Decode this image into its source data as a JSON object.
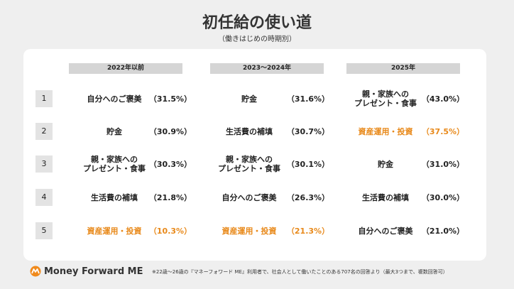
{
  "title": "初任給の使い道",
  "subtitle": "（働きはじめの時期別）",
  "chart_data": {
    "type": "table",
    "columns": [
      "2022年以前",
      "2023〜2024年",
      "2025年"
    ],
    "ranks": [
      "1",
      "2",
      "3",
      "4",
      "5"
    ],
    "rows": [
      [
        {
          "item": "自分へのご褒美",
          "pct": "（31.5%）",
          "highlight": false
        },
        {
          "item": "貯金",
          "pct": "（31.6%）",
          "highlight": false
        },
        {
          "item": "親・家族への\nプレゼント・食事",
          "pct": "（43.0%）",
          "highlight": false
        }
      ],
      [
        {
          "item": "貯金",
          "pct": "（30.9%）",
          "highlight": false
        },
        {
          "item": "生活費の補填",
          "pct": "（30.7%）",
          "highlight": false
        },
        {
          "item": "資産運用・投資",
          "pct": "（37.5%）",
          "highlight": true
        }
      ],
      [
        {
          "item": "親・家族への\nプレゼント・食事",
          "pct": "（30.3%）",
          "highlight": false
        },
        {
          "item": "親・家族への\nプレゼント・食事",
          "pct": "（30.1%）",
          "highlight": false
        },
        {
          "item": "貯金",
          "pct": "（31.0%）",
          "highlight": false
        }
      ],
      [
        {
          "item": "生活費の補填",
          "pct": "（21.8%）",
          "highlight": false
        },
        {
          "item": "自分へのご褒美",
          "pct": "（26.3%）",
          "highlight": false
        },
        {
          "item": "生活費の補填",
          "pct": "（30.0%）",
          "highlight": false
        }
      ],
      [
        {
          "item": "資産運用・投資",
          "pct": "（10.3%）",
          "highlight": true
        },
        {
          "item": "資産運用・投資",
          "pct": "（21.3%）",
          "highlight": true
        },
        {
          "item": "自分へのご褒美",
          "pct": "（21.0%）",
          "highlight": false
        }
      ]
    ],
    "highlight_color": "#e8891a"
  },
  "footer": {
    "logo_text": "Money Forward ME",
    "logo_icon": "moneyforward-logo-icon",
    "footnote": "※22歳〜26歳の『マネーフォワード ME』利用者で、社会人として働いたことのある707名の回答より（最大3つまで、複数回答可）"
  }
}
